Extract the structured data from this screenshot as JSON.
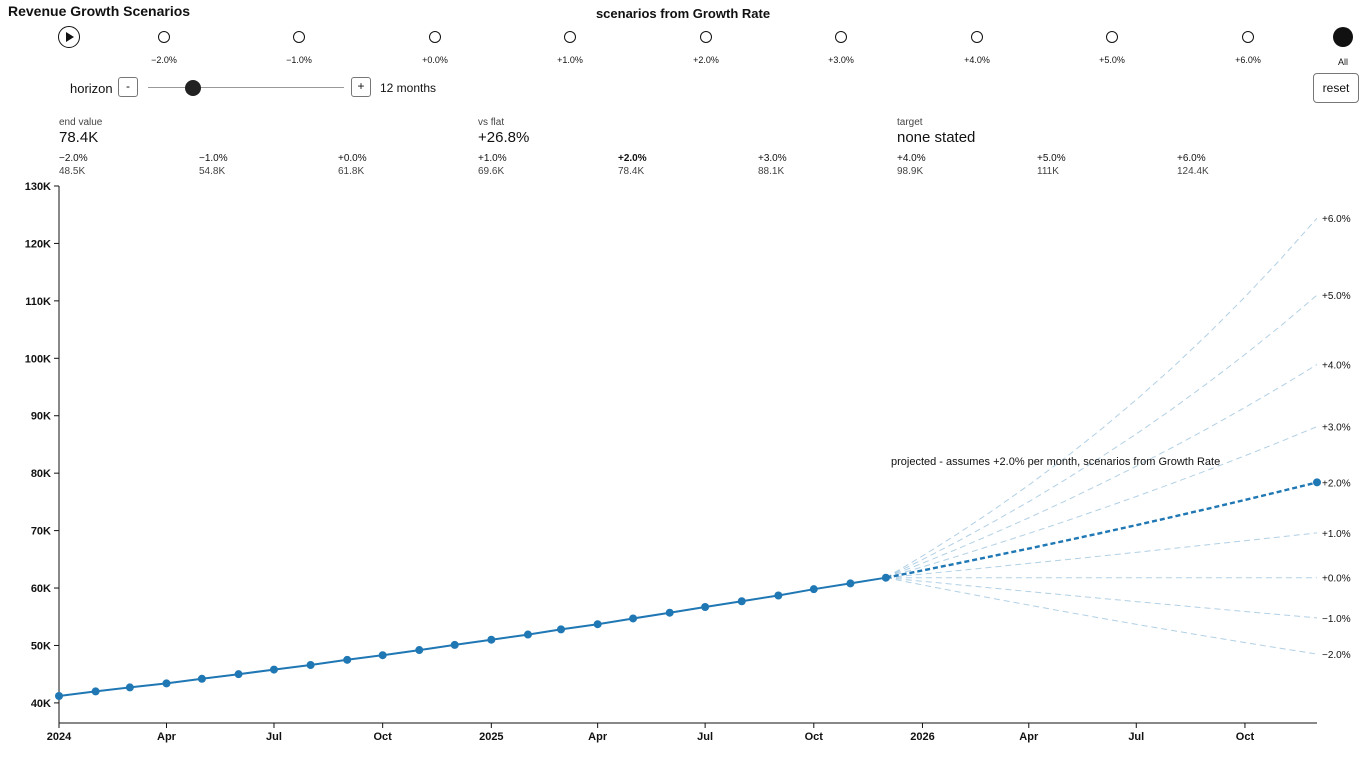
{
  "header": {
    "title": "Revenue Growth Scenarios",
    "scenarios_title": "scenarios from Growth Rate"
  },
  "player": {
    "steps": [
      "−2.0%",
      "−1.0%",
      "+0.0%",
      "+1.0%",
      "+2.0%",
      "+3.0%",
      "+4.0%",
      "+5.0%",
      "+6.0%"
    ],
    "all_label": "All"
  },
  "horizon": {
    "label": "horizon",
    "minus_label": "-",
    "plus_label": "+",
    "value_text": "12 months",
    "months": 12,
    "slider_fraction": 0.23
  },
  "reset_label": "reset",
  "stats": {
    "end_value_caption": "end value",
    "end_value": "78.4K",
    "vs_flat_caption": "vs flat",
    "vs_flat": "+26.8%",
    "target_caption": "target",
    "target": "none stated"
  },
  "scenario_summary": [
    {
      "rate": "−2.0%",
      "end": "48.5K"
    },
    {
      "rate": "−1.0%",
      "end": "54.8K"
    },
    {
      "rate": "+0.0%",
      "end": "61.8K"
    },
    {
      "rate": "+1.0%",
      "end": "69.6K"
    },
    {
      "rate": "+2.0%",
      "end": "78.4K",
      "selected": true
    },
    {
      "rate": "+3.0%",
      "end": "88.1K"
    },
    {
      "rate": "+4.0%",
      "end": "98.9K"
    },
    {
      "rate": "+5.0%",
      "end": "111K"
    },
    {
      "rate": "+6.0%",
      "end": "124.4K"
    }
  ],
  "chart_data": {
    "type": "line",
    "colors": {
      "line": "#1f77b4",
      "axis": "#111111"
    },
    "y_ticks": [
      "40K",
      "50K",
      "60K",
      "70K",
      "80K",
      "90K",
      "100K",
      "110K",
      "120K",
      "130K"
    ],
    "y_tick_values": [
      40000,
      50000,
      60000,
      70000,
      80000,
      90000,
      100000,
      110000,
      120000,
      130000
    ],
    "ylim": [
      36500,
      130000
    ],
    "x_ticks": [
      "2024",
      "Apr",
      "Jul",
      "Oct",
      "2025",
      "Apr",
      "Jul",
      "Oct",
      "2026",
      "Apr",
      "Jul",
      "Oct"
    ],
    "x_tick_dates": [
      "2024-01-01",
      "2024-04-01",
      "2024-07-01",
      "2024-10-01",
      "2025-01-01",
      "2025-04-01",
      "2025-07-01",
      "2025-10-01",
      "2026-01-01",
      "2026-04-01",
      "2026-07-01",
      "2026-10-01"
    ],
    "xlim": [
      "2024-01-01",
      "2026-12-01"
    ],
    "history": {
      "name": "",
      "dates": [
        "2024-01-01",
        "2024-02-01",
        "2024-03-01",
        "2024-04-01",
        "2024-05-01",
        "2024-06-01",
        "2024-07-01",
        "2024-08-01",
        "2024-09-01",
        "2024-10-01",
        "2024-11-01",
        "2024-12-01",
        "2025-01-01",
        "2025-02-01",
        "2025-03-01",
        "2025-04-01",
        "2025-05-01",
        "2025-06-01",
        "2025-07-01",
        "2025-08-01",
        "2025-09-01",
        "2025-10-01",
        "2025-11-01",
        "2025-12-01"
      ],
      "values": [
        41200,
        42000,
        42700,
        43400,
        44200,
        45000,
        45800,
        46600,
        47500,
        48300,
        49200,
        50100,
        51000,
        51900,
        52800,
        53700,
        54700,
        55700,
        56700,
        57700,
        58700,
        59800,
        60800,
        61800
      ]
    },
    "projection": {
      "start_date": "2025-12-01",
      "end_date": "2026-12-01",
      "start_value": 61800,
      "selected_rate": "+2.0%",
      "scenarios": [
        {
          "name": "−2.0%",
          "end_value": 48500
        },
        {
          "name": "−1.0%",
          "end_value": 54800
        },
        {
          "name": "+0.0%",
          "end_value": 61800
        },
        {
          "name": "+1.0%",
          "end_value": 69600
        },
        {
          "name": "+2.0%",
          "end_value": 78400
        },
        {
          "name": "+3.0%",
          "end_value": 88100
        },
        {
          "name": "+4.0%",
          "end_value": 98900
        },
        {
          "name": "+5.0%",
          "end_value": 111000
        },
        {
          "name": "+6.0%",
          "end_value": 124400
        }
      ]
    },
    "annotation": "projected - assumes +2.0% per month, scenarios from Growth Rate"
  }
}
